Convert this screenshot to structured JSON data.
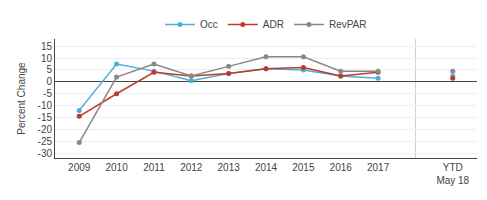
{
  "chart_data": {
    "type": "line",
    "categories": [
      "2009",
      "2010",
      "2011",
      "2012",
      "2013",
      "2014",
      "2015",
      "2016",
      "2017",
      null,
      "YTD\nMay 18"
    ],
    "series": [
      {
        "name": "Occ",
        "color": "#4BAFD6",
        "values": [
          -12,
          7.5,
          4.5,
          0.5,
          3.5,
          5.5,
          5.0,
          2.5,
          1.5,
          null,
          2.5
        ]
      },
      {
        "name": "ADR",
        "color": "#C0392B",
        "values": [
          -14.5,
          -5,
          4,
          2.5,
          3.5,
          5.5,
          6.0,
          2.5,
          4.0,
          null,
          1.5
        ]
      },
      {
        "name": "RevPAR",
        "color": "#888888",
        "values": [
          -25.5,
          2,
          7.5,
          2.5,
          6.5,
          10.5,
          10.5,
          4.5,
          4.5,
          null,
          4.5
        ]
      }
    ],
    "ylabel": "Percent Change",
    "ylim": [
      -32,
      18
    ],
    "yticks": [
      -30,
      -25,
      -20,
      -15,
      -10,
      -5,
      0,
      5,
      10,
      15
    ],
    "grid": true,
    "legend": "top",
    "marker": "circle"
  }
}
